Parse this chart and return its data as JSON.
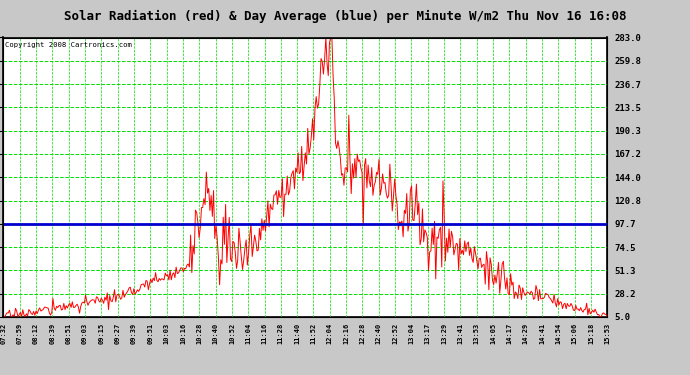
{
  "title": "Solar Radiation (red) & Day Average (blue) per Minute W/m2 Thu Nov 16 16:08",
  "copyright": "Copyright 2008 Cartronics.com",
  "yticks": [
    5.0,
    28.2,
    51.3,
    74.5,
    97.7,
    120.8,
    144.0,
    167.2,
    190.3,
    213.5,
    236.7,
    259.8,
    283.0
  ],
  "xtick_labels": [
    "07:32",
    "07:59",
    "08:12",
    "08:39",
    "08:51",
    "09:03",
    "09:15",
    "09:27",
    "09:39",
    "09:51",
    "10:03",
    "10:16",
    "10:28",
    "10:40",
    "10:52",
    "11:04",
    "11:16",
    "11:28",
    "11:40",
    "11:52",
    "12:04",
    "12:16",
    "12:28",
    "12:40",
    "12:52",
    "13:04",
    "13:17",
    "13:29",
    "13:41",
    "13:53",
    "14:05",
    "14:17",
    "14:29",
    "14:41",
    "14:54",
    "15:06",
    "15:18",
    "15:53"
  ],
  "ymin": 5.0,
  "ymax": 283.0,
  "day_average": 97.7,
  "plot_bg": "#ffffff",
  "outer_bg": "#c8c8c8",
  "grid_color": "#00dd00",
  "grid_color2": "#aaaaaa",
  "line_color": "#ff0000",
  "avg_color": "#0000cc",
  "title_color": "#000000",
  "title_bg": "#ffffff"
}
